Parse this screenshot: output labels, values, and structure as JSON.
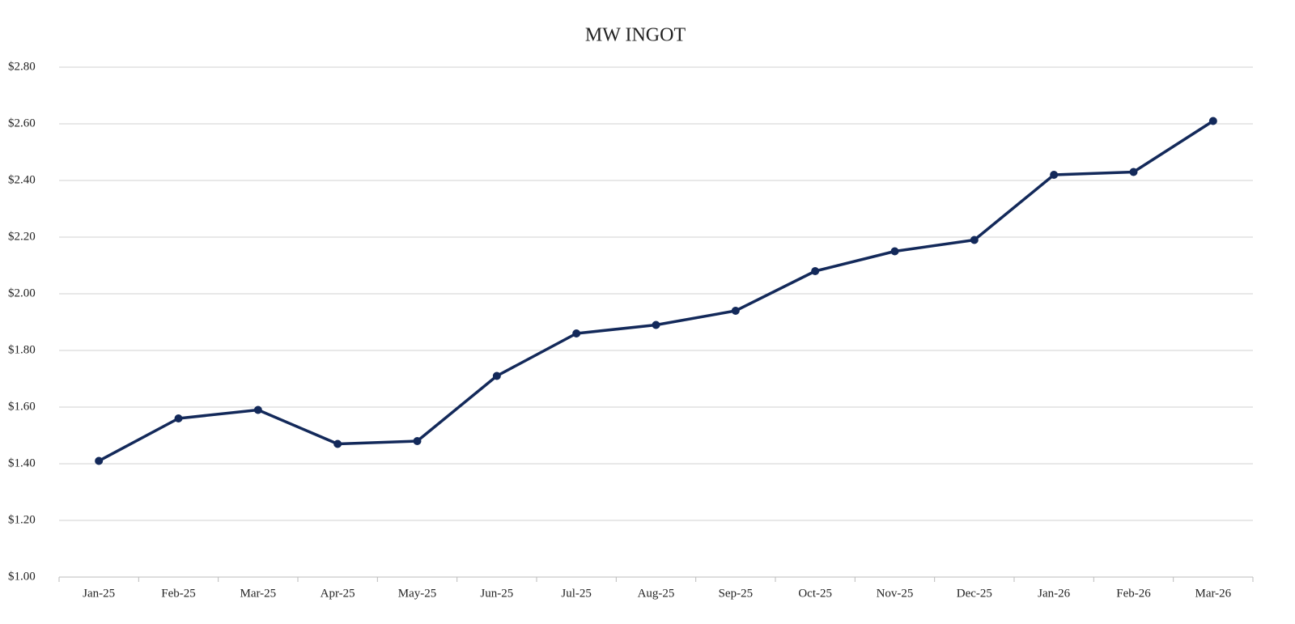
{
  "chart_data": {
    "type": "line",
    "title": "MW INGOT",
    "categories": [
      "Jan-25",
      "Feb-25",
      "Mar-25",
      "Apr-25",
      "May-25",
      "Jun-25",
      "Jul-25",
      "Aug-25",
      "Sep-25",
      "Oct-25",
      "Nov-25",
      "Dec-25",
      "Jan-26",
      "Feb-26",
      "Mar-26"
    ],
    "values": [
      1.41,
      1.56,
      1.59,
      1.47,
      1.48,
      1.71,
      1.86,
      1.89,
      1.94,
      2.08,
      2.15,
      2.19,
      2.42,
      2.43,
      2.61
    ],
    "color": "#13295a",
    "ylim": [
      1.0,
      2.8
    ],
    "yticks": [
      {
        "value": 1.0,
        "label": "$1.00"
      },
      {
        "value": 1.2,
        "label": "$1.20"
      },
      {
        "value": 1.4,
        "label": "$1.40"
      },
      {
        "value": 1.6,
        "label": "$1.60"
      },
      {
        "value": 1.8,
        "label": "$1.80"
      },
      {
        "value": 2.0,
        "label": "$2.00"
      },
      {
        "value": 2.2,
        "label": "$2.20"
      },
      {
        "value": 2.4,
        "label": "$2.40"
      },
      {
        "value": 2.6,
        "label": "$2.60"
      },
      {
        "value": 2.8,
        "label": "$2.80"
      }
    ],
    "grid": true
  }
}
